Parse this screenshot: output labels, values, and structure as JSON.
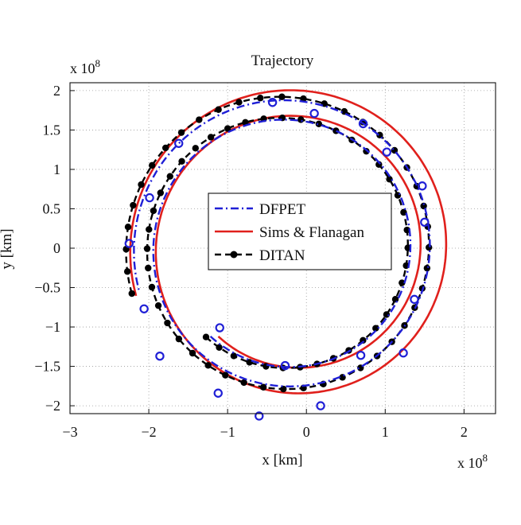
{
  "chart_data": {
    "type": "line",
    "title": "Trajectory",
    "xlabel": "x [km]",
    "ylabel": "y [km]",
    "x_multiplier_label": "x 10",
    "x_multiplier_exp": "8",
    "y_multiplier_label": "x 10",
    "y_multiplier_exp": "8",
    "xlim": [
      -3,
      2.4
    ],
    "ylim": [
      -2.1,
      2.1
    ],
    "xticks": [
      -3,
      -2,
      -1,
      0,
      1,
      2
    ],
    "yticks": [
      -2,
      -1.5,
      -1,
      -0.5,
      0,
      0.5,
      1,
      1.5,
      2
    ],
    "xtick_labels": [
      "−3",
      "−2",
      "−1",
      "0",
      "1",
      "2"
    ],
    "ytick_labels": [
      "−2",
      "−1.5",
      "−1",
      "−0.5",
      "0",
      "0.5",
      "1",
      "1.5",
      "2"
    ],
    "grid": true,
    "legend_position": "center",
    "series": [
      {
        "name": "DFPET",
        "style": "dash-dot",
        "color": "#1f1fd6",
        "marker": "open-circle",
        "spiral": {
          "theta_start": 4.0,
          "theta_end": 16.0,
          "x_center": -0.25,
          "y_center": 0.0,
          "r_start": 1.48,
          "r_end": 1.95
        },
        "marker_points": [
          [
            -1.1,
            -1.01
          ],
          [
            -0.27,
            -1.49
          ],
          [
            0.69,
            -1.36
          ],
          [
            1.23,
            -1.33
          ],
          [
            1.37,
            -0.65
          ],
          [
            1.5,
            0.33
          ],
          [
            1.47,
            0.79
          ],
          [
            1.02,
            1.22
          ],
          [
            0.72,
            1.58
          ],
          [
            0.1,
            1.71
          ],
          [
            -0.43,
            1.85
          ],
          [
            -1.62,
            1.33
          ],
          [
            -1.99,
            0.64
          ],
          [
            -2.25,
            0.06
          ],
          [
            -2.06,
            -0.77
          ],
          [
            -1.86,
            -1.37
          ],
          [
            -1.12,
            -1.84
          ],
          [
            -0.6,
            -2.13
          ],
          [
            0.18,
            -2.0
          ]
        ]
      },
      {
        "name": "Sims & Flanagan",
        "style": "solid",
        "color": "#e0201c",
        "marker": "none",
        "spiral": {
          "theta_start": 4.0,
          "theta_end": 16.0,
          "x_center": -0.15,
          "y_center": 0.0,
          "r_start": 1.48,
          "r_end": 2.1
        }
      },
      {
        "name": "DITAN",
        "style": "dashed",
        "color": "#000000",
        "marker": "filled-circle",
        "spiral": {
          "theta_start": 4.0,
          "theta_end": 16.0,
          "x_center": -0.3,
          "y_center": 0.0,
          "r_start": 1.49,
          "r_end": 2.0
        }
      }
    ]
  }
}
